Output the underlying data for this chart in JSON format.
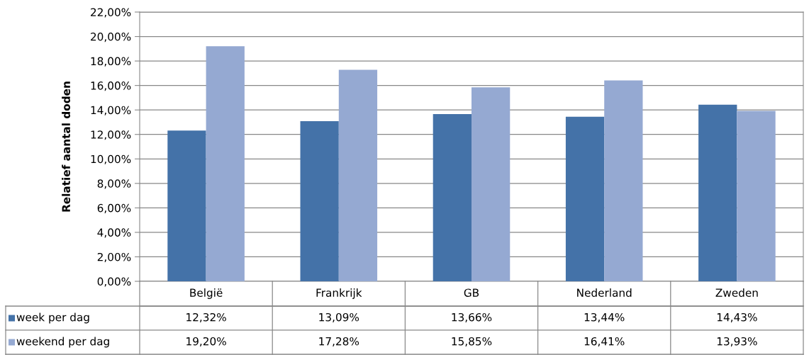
{
  "chart_data": {
    "type": "bar",
    "ylabel": "Relatief aantal doden",
    "categories": [
      "België",
      "Frankrijk",
      "GB",
      "Nederland",
      "Zweden"
    ],
    "series": [
      {
        "name": "week per dag",
        "color": "#4472a8",
        "values": [
          12.32,
          13.09,
          13.66,
          13.44,
          14.43
        ],
        "value_labels": [
          "12,32%",
          "13,09%",
          "13,66%",
          "13,44%",
          "14,43%"
        ]
      },
      {
        "name": "weekend per dag",
        "color": "#95a9d2",
        "values": [
          19.2,
          17.28,
          15.85,
          16.41,
          13.93
        ],
        "value_labels": [
          "19,20%",
          "17,28%",
          "15,85%",
          "16,41%",
          "13,93%"
        ]
      }
    ],
    "ylim": [
      0,
      22
    ],
    "yticks": [
      {
        "value": 0,
        "label": "0,00%"
      },
      {
        "value": 2,
        "label": "2,00%"
      },
      {
        "value": 4,
        "label": "4,00%"
      },
      {
        "value": 6,
        "label": "6,00%"
      },
      {
        "value": 8,
        "label": "8,00%"
      },
      {
        "value": 10,
        "label": "10,00%"
      },
      {
        "value": 12,
        "label": "12,00%"
      },
      {
        "value": 14,
        "label": "14,00%"
      },
      {
        "value": 16,
        "label": "16,00%"
      },
      {
        "value": 18,
        "label": "18,00%"
      },
      {
        "value": 20,
        "label": "20,00%"
      },
      {
        "value": 22,
        "label": "22,00%"
      }
    ],
    "grid": "y",
    "legend": "bottom"
  }
}
